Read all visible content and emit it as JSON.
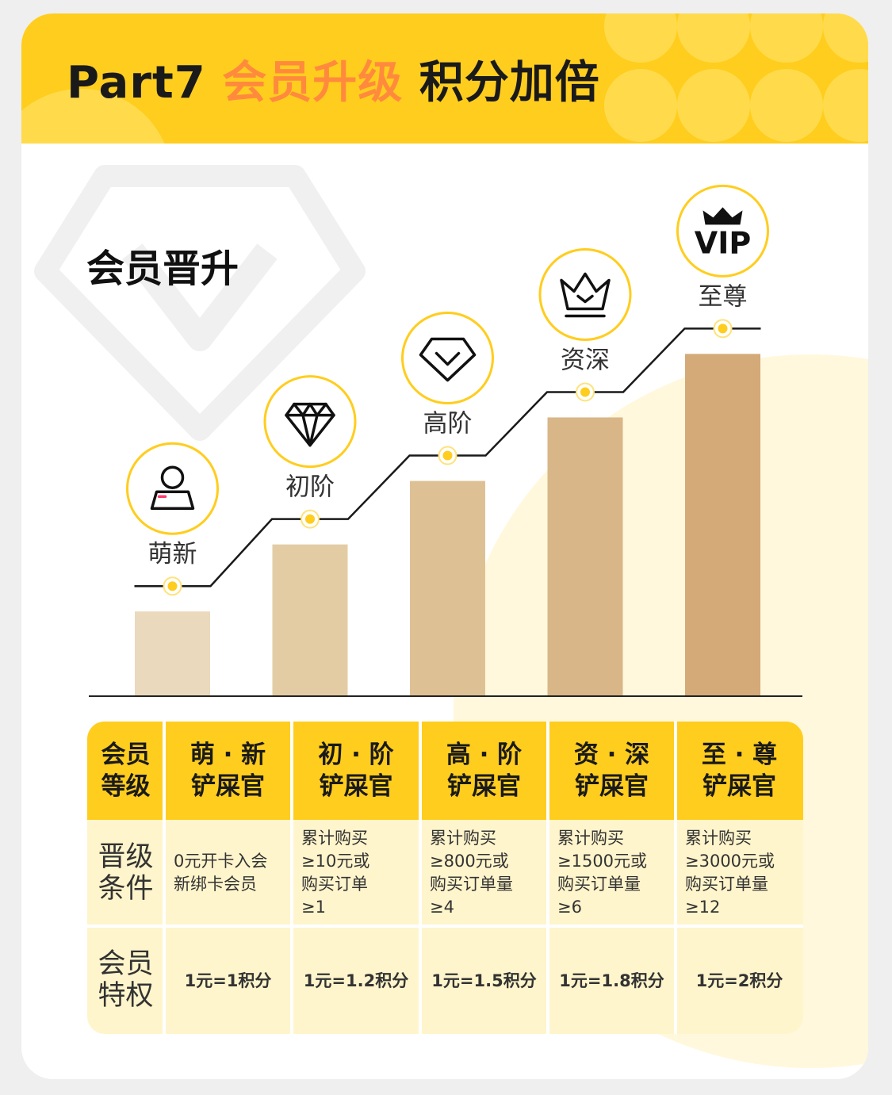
{
  "header": {
    "title_part": "Part7",
    "title_highlight": "会员升级",
    "title_rest": "积分加倍"
  },
  "section_title": "会员晋升",
  "levels": [
    {
      "name": "萌新",
      "icon": "person-badge-icon",
      "bar_color": "#ead9bc",
      "relative_height": 0.24
    },
    {
      "name": "初阶",
      "icon": "diamond-icon",
      "bar_color": "#e3cca4",
      "relative_height": 0.43
    },
    {
      "name": "高阶",
      "icon": "v-gem-icon",
      "bar_color": "#ddc195",
      "relative_height": 0.61
    },
    {
      "name": "资深",
      "icon": "crown-check-icon",
      "bar_color": "#d8b688",
      "relative_height": 0.79
    },
    {
      "name": "至尊",
      "icon": "vip-crown-icon",
      "bar_color": "#d3aa78",
      "relative_height": 0.97
    }
  ],
  "vip_icon_text": "VIP",
  "colors": {
    "yellow": "#ffcd1e",
    "highlight": "#ff8a3d",
    "table_body": "#fff5cc"
  },
  "table": {
    "header_label": [
      "会员",
      "等级"
    ],
    "columns": [
      {
        "line1": "萌 · 新",
        "line2": "铲屎官"
      },
      {
        "line1": "初 · 阶",
        "line2": "铲屎官"
      },
      {
        "line1": "高 · 阶",
        "line2": "铲屎官"
      },
      {
        "line1": "资 · 深",
        "line2": "铲屎官"
      },
      {
        "line1": "至 · 尊",
        "line2": "铲屎官"
      }
    ],
    "condition_label": [
      "晋级",
      "条件"
    ],
    "conditions": [
      [
        "0元开卡入会",
        "新绑卡会员"
      ],
      [
        "累计购买",
        "≥10元或",
        "购买订单",
        "≥1"
      ],
      [
        "累计购买",
        "≥800元或",
        "购买订单量",
        "≥4"
      ],
      [
        "累计购买",
        "≥1500元或",
        "购买订单量",
        "≥6"
      ],
      [
        "累计购买",
        "≥3000元或",
        "购买订单量",
        "≥12"
      ]
    ],
    "privilege_label": [
      "会员",
      "特权"
    ],
    "privileges": [
      "1元=1积分",
      "1元=1.2积分",
      "1元=1.5积分",
      "1元=1.8积分",
      "1元=2积分"
    ]
  }
}
